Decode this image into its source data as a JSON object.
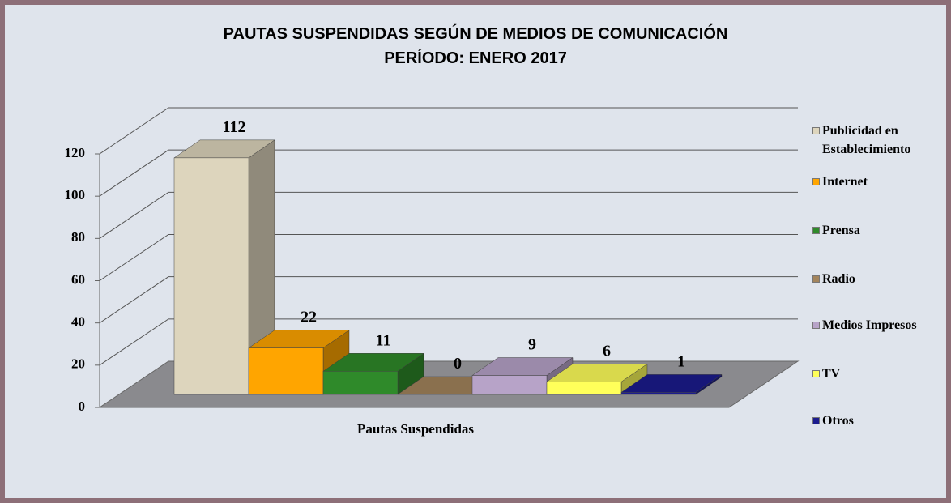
{
  "chart_data": {
    "type": "bar3d",
    "title": "PAUTAS SUSPENDIDAS SEGÚN DE MEDIOS DE COMUNICACIÓN",
    "subtitle": "PERÍODO: ENERO 2017",
    "categories": [
      "Pautas Suspendidas"
    ],
    "series": [
      {
        "name": "Publicidad en Establecimiento",
        "color": "#ddd5bd",
        "values": [
          112
        ]
      },
      {
        "name": "Internet",
        "color": "#ffa500",
        "values": [
          22
        ]
      },
      {
        "name": "Prensa",
        "color": "#2f8a2a",
        "values": [
          11
        ]
      },
      {
        "name": "Radio",
        "color": "#a3845c",
        "values": [
          0
        ]
      },
      {
        "name": "Medios Impresos",
        "color": "#b7a3c8",
        "values": [
          9
        ]
      },
      {
        "name": "TV",
        "color": "#ffff5a",
        "values": [
          6
        ]
      },
      {
        "name": "Otros",
        "color": "#1c1c8e",
        "values": [
          1
        ]
      }
    ],
    "ylim": [
      0,
      120
    ],
    "yticks": [
      0,
      20,
      40,
      60,
      80,
      100,
      120
    ],
    "grid": true
  }
}
